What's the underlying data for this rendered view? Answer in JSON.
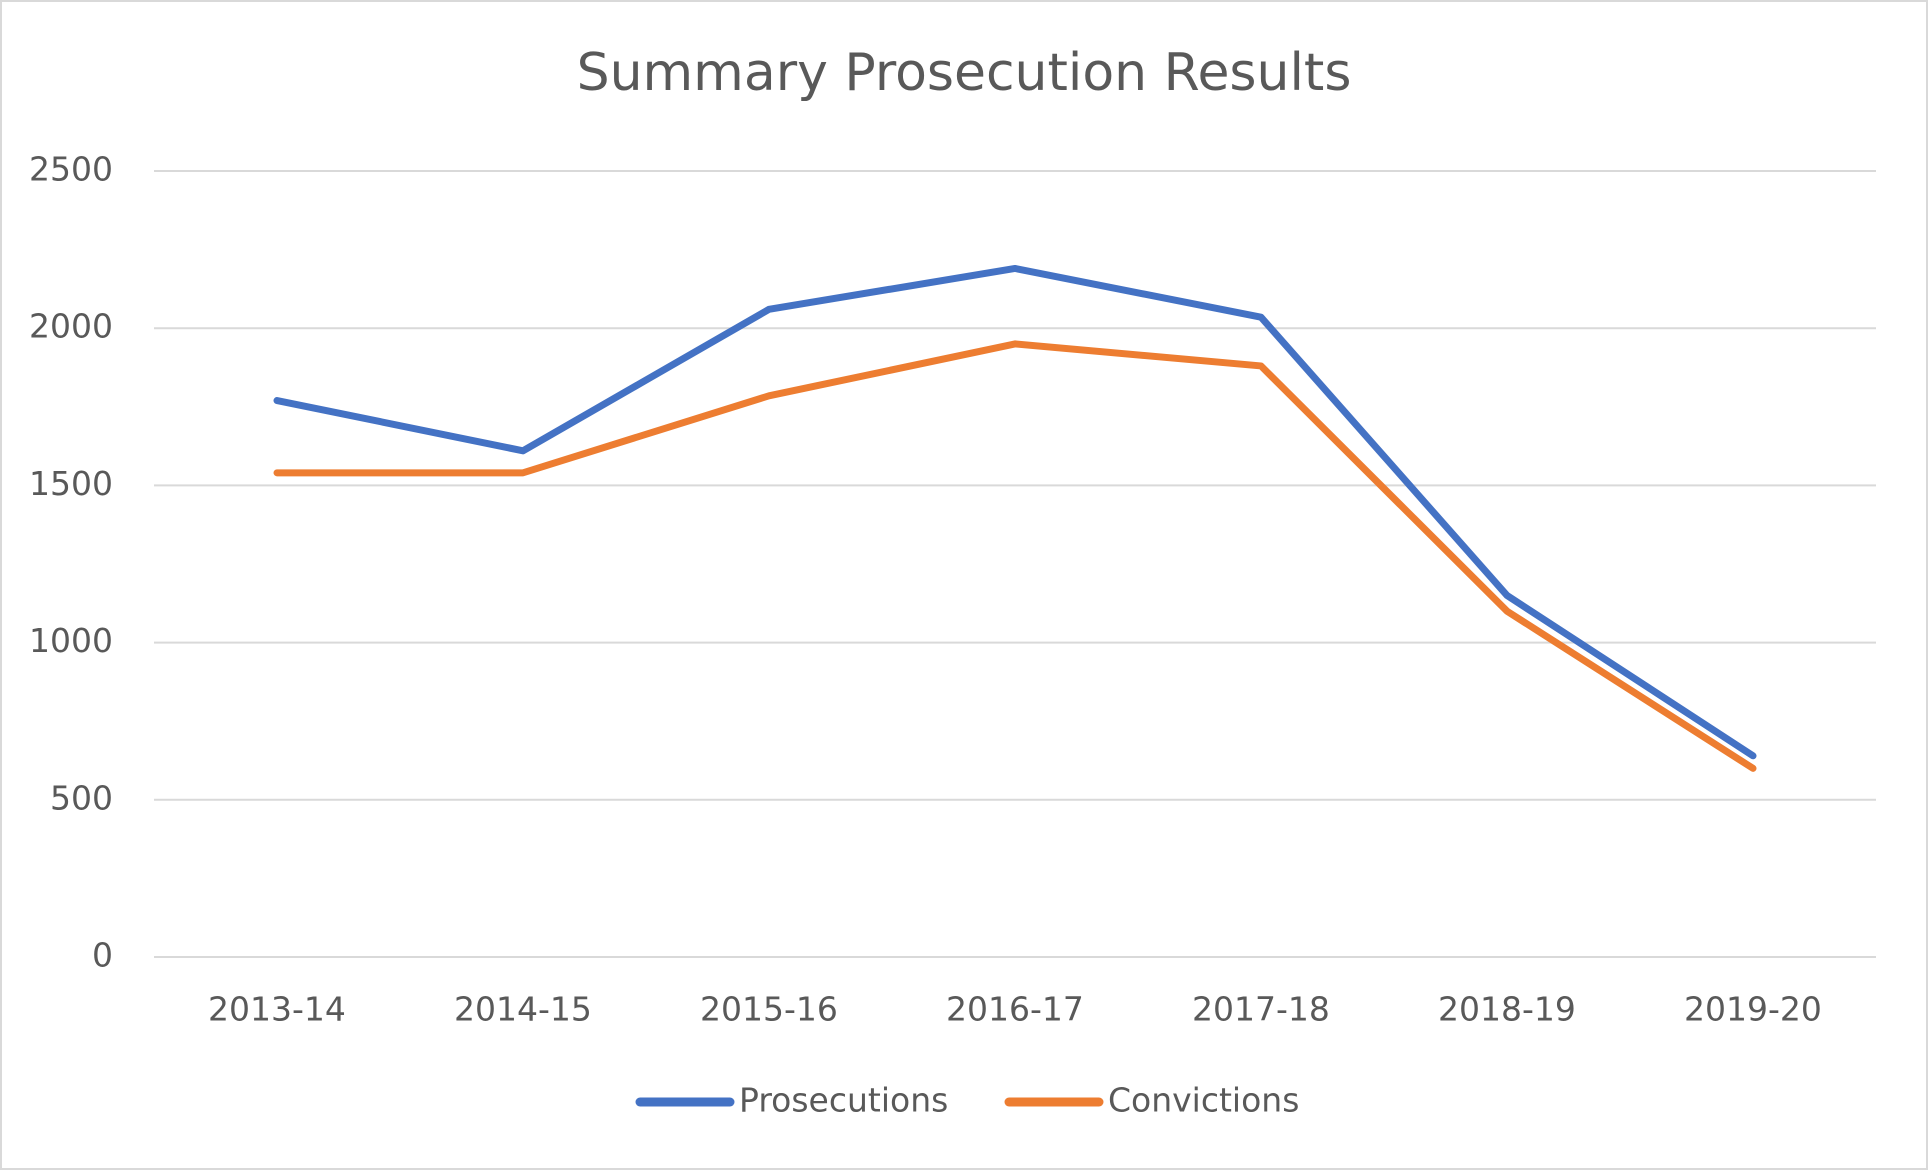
{
  "chart_data": {
    "type": "line",
    "title": "Summary Prosecution Results",
    "categories": [
      "2013-14",
      "2014-15",
      "2015-16",
      "2016-17",
      "2017-18",
      "2018-19",
      "2019-20"
    ],
    "series": [
      {
        "name": "Prosecutions",
        "color": "#4472c4",
        "values": [
          1770,
          1610,
          2060,
          2190,
          2035,
          1150,
          640
        ]
      },
      {
        "name": "Convictions",
        "color": "#ed7d31",
        "values": [
          1540,
          1540,
          1785,
          1950,
          1880,
          1100,
          600
        ]
      }
    ],
    "ylim": [
      0,
      2500
    ],
    "yticks": [
      0,
      500,
      1000,
      1500,
      2000,
      2500
    ],
    "grid": true,
    "legend": "bottom"
  }
}
